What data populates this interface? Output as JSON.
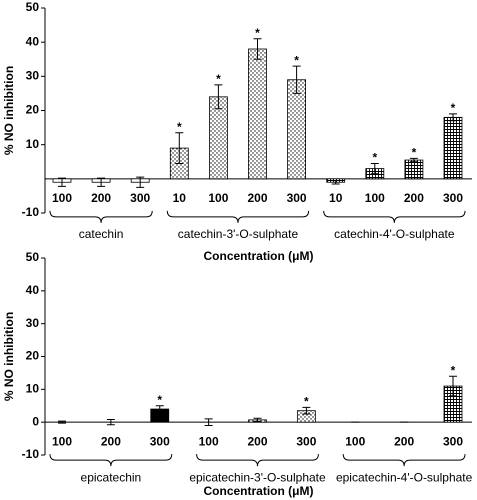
{
  "chart_data": [
    {
      "type": "bar",
      "y_label": "% NO inhibition",
      "x_label": "Concentration (μM)",
      "ylim": [
        -10,
        50
      ],
      "yticks": [
        -10,
        10,
        20,
        30,
        40,
        50
      ],
      "series": [
        {
          "name": "catechin",
          "fill": "white",
          "categories": [
            "100",
            "200",
            "300"
          ],
          "values": [
            -1,
            -1,
            -1
          ],
          "errors": [
            1.2,
            1.2,
            1.5
          ],
          "markers": [
            null,
            null,
            null
          ]
        },
        {
          "name": "catechin-3'-O-sulphate",
          "fill": "dots",
          "categories": [
            "10",
            "100",
            "200",
            "300"
          ],
          "values": [
            9,
            24,
            38,
            29
          ],
          "errors": [
            4.5,
            3.5,
            3,
            4
          ],
          "markers": [
            "*",
            "*",
            "*",
            "*"
          ]
        },
        {
          "name": "catechin-4'-O-sulphate",
          "fill": "grid",
          "categories": [
            "10",
            "100",
            "200",
            "300"
          ],
          "values": [
            -1,
            3,
            5.5,
            18
          ],
          "errors": [
            0.5,
            1.5,
            0.5,
            1
          ],
          "markers": [
            null,
            "*",
            "*",
            "*"
          ]
        }
      ]
    },
    {
      "type": "bar",
      "y_label": "% NO inhibition",
      "x_label": "Concentration (μM)",
      "ylim": [
        -10,
        50
      ],
      "yticks": [
        -10,
        0,
        10,
        20,
        30,
        40,
        50
      ],
      "series": [
        {
          "name": "epicatechin",
          "fill": "black",
          "categories": [
            "100",
            "200",
            "300"
          ],
          "values": [
            0,
            0,
            4
          ],
          "errors": [
            0.3,
            0.8,
            1
          ],
          "markers": [
            null,
            null,
            "*"
          ]
        },
        {
          "name": "epicatechin-3'-O-sulphate",
          "fill": "dots",
          "categories": [
            "100",
            "200",
            "300"
          ],
          "values": [
            0,
            0.7,
            3.5
          ],
          "errors": [
            1,
            0.5,
            1
          ],
          "markers": [
            null,
            null,
            "*"
          ]
        },
        {
          "name": "epicatechin-4'-O-sulphate",
          "fill": "grid",
          "categories": [
            "100",
            "200",
            "300"
          ],
          "values": [
            0,
            0,
            11
          ],
          "errors": [
            0,
            0,
            3
          ],
          "markers": [
            null,
            null,
            "*"
          ]
        }
      ]
    }
  ]
}
